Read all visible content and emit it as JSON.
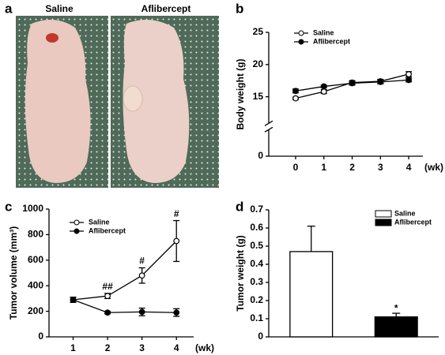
{
  "photo_panel": {
    "label": "a",
    "captions": [
      "Saline",
      "Aflibercept"
    ]
  },
  "chart_data": [
    {
      "type": "line",
      "panel_label": "b",
      "y_label": "Body weight (g)",
      "x_label": "(wk)",
      "x": [
        0,
        1,
        2,
        3,
        4
      ],
      "xlim": [
        -0.95,
        4.5
      ],
      "xticks": [
        0,
        1,
        2,
        3,
        4
      ],
      "ylim": [
        0,
        25
      ],
      "yticks": [
        0,
        15,
        20,
        25
      ],
      "axis_break": true,
      "series": [
        {
          "name": "Saline",
          "color": "#000000",
          "marker": "open",
          "values": [
            14.6,
            15.8,
            17.2,
            17.4,
            18.5
          ],
          "errors": [
            0.3,
            0.3,
            0.3,
            0.3,
            0.4
          ]
        },
        {
          "name": "Aflibercept",
          "color": "#000000",
          "marker": "filled",
          "values": [
            15.9,
            16.6,
            17.1,
            17.3,
            17.6
          ],
          "errors": [
            0.3,
            0.2,
            0.3,
            0.3,
            0.3
          ]
        }
      ]
    },
    {
      "type": "line",
      "panel_label": "c",
      "y_label": "Tumor volume (mm³)",
      "x_label": "(wk)",
      "x": [
        1,
        2,
        3,
        4
      ],
      "xlim": [
        0.3,
        4.5
      ],
      "xticks": [
        1,
        2,
        3,
        4
      ],
      "ylim": [
        0,
        1000
      ],
      "yticks": [
        0,
        200,
        400,
        600,
        800,
        1000
      ],
      "series": [
        {
          "name": "Saline",
          "color": "#000000",
          "marker": "open",
          "values": [
            290,
            320,
            480,
            750
          ],
          "errors": [
            20,
            20,
            60,
            160
          ],
          "annotations": [
            null,
            "##",
            "#",
            "#"
          ]
        },
        {
          "name": "Aflibercept",
          "color": "#000000",
          "marker": "filled",
          "values": [
            290,
            190,
            195,
            190
          ],
          "errors": [
            20,
            10,
            30,
            30
          ]
        }
      ]
    },
    {
      "type": "bar",
      "panel_label": "d",
      "y_label": "Tumor weight (g)",
      "ylim": [
        0,
        0.7
      ],
      "yticks": [
        0,
        0.1,
        0.2,
        0.3,
        0.4,
        0.5,
        0.6,
        0.7
      ],
      "series": [
        {
          "name": "Saline",
          "color": "#ffffff",
          "values": [
            0.47
          ],
          "errors": [
            0.14
          ]
        },
        {
          "name": "Aflibercept",
          "color": "#000000",
          "values": [
            0.11
          ],
          "errors": [
            0.02
          ],
          "annotation": "*"
        }
      ]
    }
  ]
}
